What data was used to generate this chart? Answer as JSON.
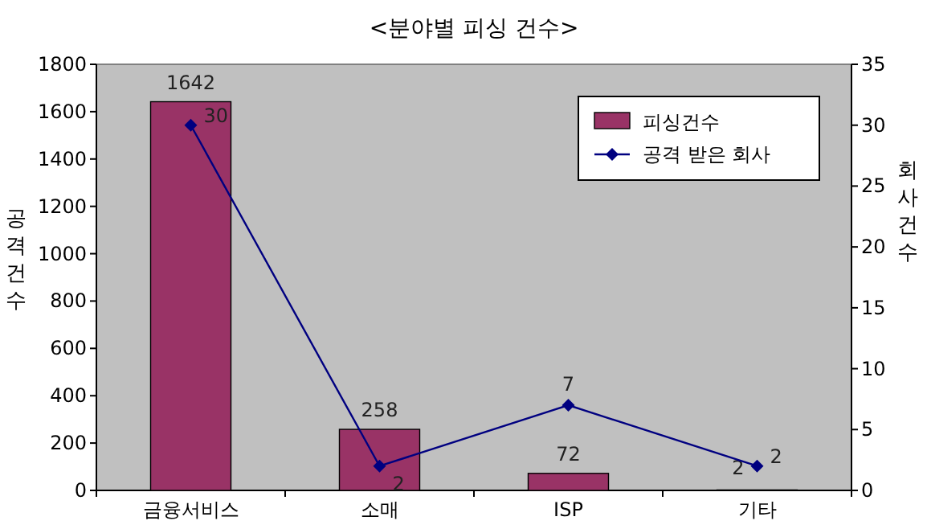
{
  "chart_data": {
    "type": "bar",
    "title": "<분야별 피싱 건수>",
    "ylabel": "공격건수",
    "y2label": "회사건수",
    "categories": [
      "금융서비스",
      "소매",
      "ISP",
      "기타"
    ],
    "series": [
      {
        "name": "피싱건수",
        "color": "#993366",
        "values": [
          1642,
          258,
          72,
          2
        ]
      },
      {
        "name": "공격 받은 회사",
        "type": "line",
        "axis": "y2",
        "color": "#000080",
        "marker": "diamond",
        "values": [
          30,
          2,
          7,
          2
        ]
      }
    ],
    "ylim": [
      0,
      1800
    ],
    "yticks": [
      0,
      200,
      400,
      600,
      800,
      1000,
      1200,
      1400,
      1600,
      1800
    ],
    "y2lim": [
      0,
      35
    ],
    "y2ticks": [
      0,
      5,
      10,
      15,
      20,
      25,
      30,
      35
    ],
    "data_labels": true,
    "legend": "top right",
    "grid": false
  }
}
